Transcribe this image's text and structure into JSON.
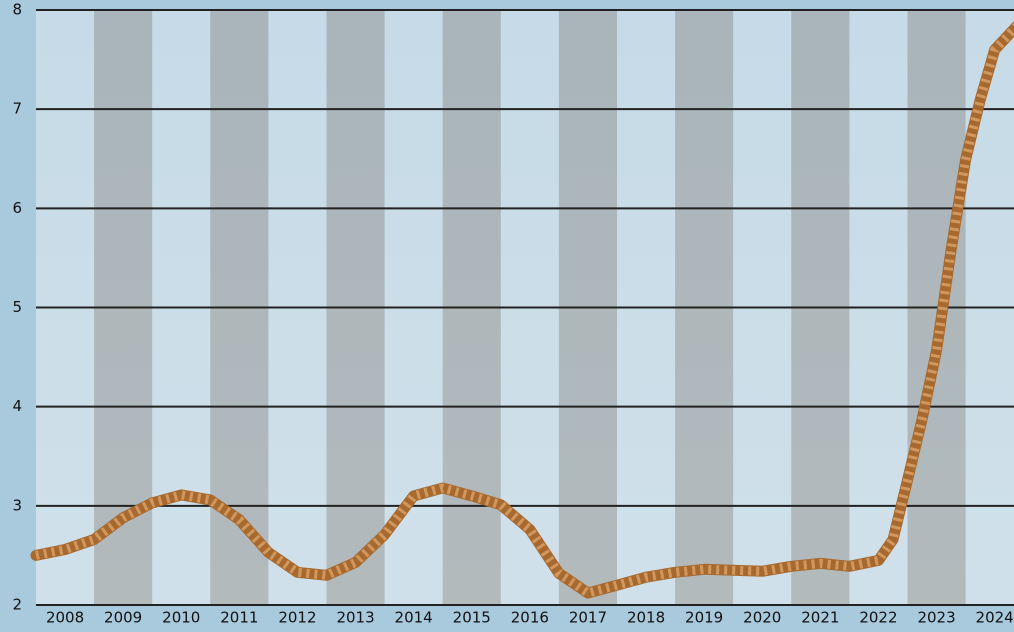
{
  "chart_data": {
    "type": "line",
    "x": [
      2007.5,
      2008,
      2008.5,
      2009,
      2009.5,
      2010,
      2010.5,
      2011,
      2011.5,
      2012,
      2012.5,
      2013,
      2013.5,
      2014,
      2014.5,
      2015,
      2015.5,
      2016,
      2016.5,
      2017,
      2017.5,
      2018,
      2018.5,
      2019,
      2019.5,
      2020,
      2020.5,
      2021,
      2021.5,
      2022,
      2022.25,
      2022.5,
      2022.75,
      2023,
      2023.25,
      2023.5,
      2023.75,
      2024,
      2024.4
    ],
    "series": [
      {
        "color": "#a8692e",
        "values": [
          2.5,
          2.56,
          2.66,
          2.88,
          3.03,
          3.11,
          3.06,
          2.86,
          2.53,
          2.33,
          2.3,
          2.43,
          2.71,
          3.1,
          3.18,
          3.1,
          3.01,
          2.76,
          2.32,
          2.12,
          2.2,
          2.28,
          2.33,
          2.36,
          2.35,
          2.34,
          2.39,
          2.42,
          2.39,
          2.45,
          2.66,
          3.26,
          3.87,
          4.57,
          5.58,
          6.49,
          7.09,
          7.6,
          7.85
        ]
      }
    ],
    "xlim": [
      2007.5,
      2024.5
    ],
    "xticks": [
      2008,
      2009,
      2010,
      2011,
      2012,
      2013,
      2014,
      2015,
      2016,
      2017,
      2018,
      2019,
      2020,
      2021,
      2022,
      2023,
      2024
    ],
    "ylim": [
      2,
      8
    ],
    "yticks": [
      2,
      3,
      4,
      5,
      6,
      7,
      8
    ],
    "grid": true
  }
}
